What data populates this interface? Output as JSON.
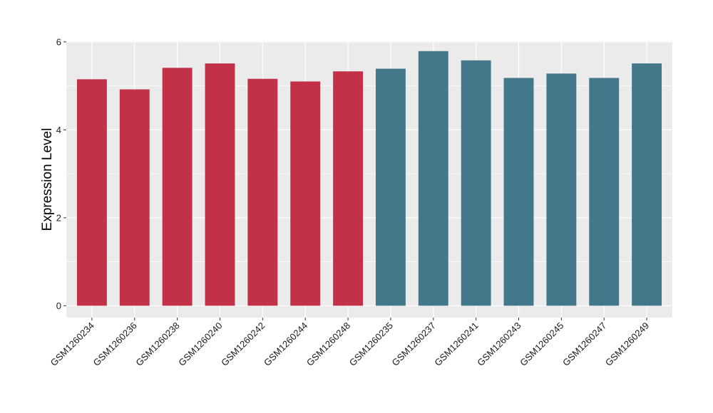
{
  "chart_data": {
    "type": "bar",
    "ylabel": "Expression Level",
    "xlabel": "",
    "ylim": [
      0,
      6
    ],
    "yticks": [
      0,
      2,
      4,
      6
    ],
    "grid": true,
    "categories": [
      "GSM1260234",
      "GSM1260236",
      "GSM1260238",
      "GSM1260240",
      "GSM1260242",
      "GSM1260244",
      "GSM1260248",
      "GSM1260235",
      "GSM1260237",
      "GSM1260241",
      "GSM1260243",
      "GSM1260245",
      "GSM1260247",
      "GSM1260249"
    ],
    "values": [
      5.15,
      4.92,
      5.41,
      5.51,
      5.16,
      5.1,
      5.33,
      5.39,
      5.79,
      5.58,
      5.18,
      5.28,
      5.18,
      5.51
    ],
    "groups": [
      0,
      0,
      0,
      0,
      0,
      0,
      0,
      1,
      1,
      1,
      1,
      1,
      1,
      1
    ],
    "group_colors": [
      "#c33149",
      "#42788a"
    ],
    "panel_color": "#ebebeb",
    "grid_color": "#ffffff"
  }
}
